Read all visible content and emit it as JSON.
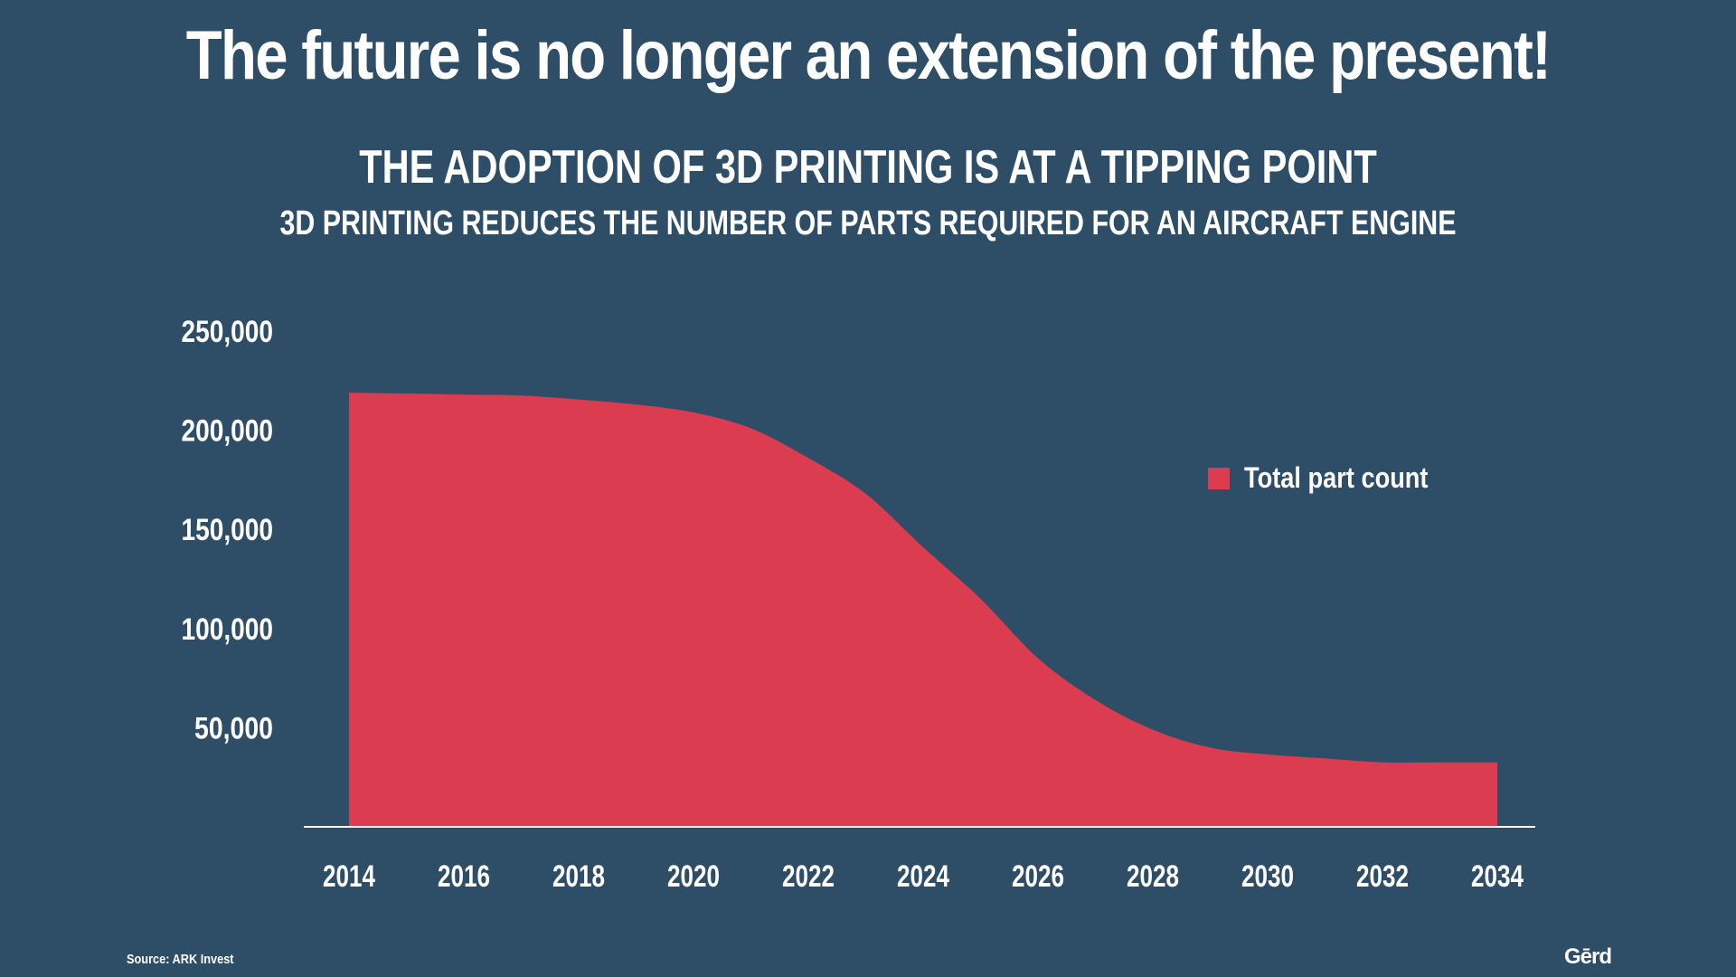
{
  "headline": "The future is no longer an extension of the present!",
  "logo": "Gērd",
  "source": "Source: ARK Invest",
  "chart_data": {
    "type": "area",
    "title": "THE ADOPTION OF 3D PRINTING IS AT A TIPPING POINT",
    "subtitle": "3D PRINTING REDUCES THE NUMBER OF PARTS REQUIRED FOR AN AIRCRAFT ENGINE",
    "xlabel": "",
    "ylabel": "",
    "x": [
      2014,
      2015,
      2016,
      2017,
      2018,
      2019,
      2020,
      2021,
      2022,
      2023,
      2024,
      2025,
      2026,
      2027,
      2028,
      2029,
      2030,
      2031,
      2032,
      2033,
      2034
    ],
    "series": [
      {
        "name": "Total part count",
        "color": "#db3c50",
        "values": [
          219000,
          218500,
          218000,
          217500,
          215500,
          213000,
          209000,
          201000,
          186000,
          168000,
          141000,
          115000,
          85000,
          64000,
          49000,
          40000,
          36500,
          34500,
          32500,
          32500,
          32500
        ]
      }
    ],
    "xticks": [
      "2014",
      "2016",
      "2018",
      "2020",
      "2022",
      "2024",
      "2026",
      "2028",
      "2030",
      "2032",
      "2034"
    ],
    "yticks": [
      "50,000",
      "100,000",
      "150,000",
      "200,000",
      "250,000"
    ],
    "xlim": [
      2014,
      2034
    ],
    "ylim": [
      0,
      250000
    ],
    "grid": false,
    "legend_position": "right"
  }
}
